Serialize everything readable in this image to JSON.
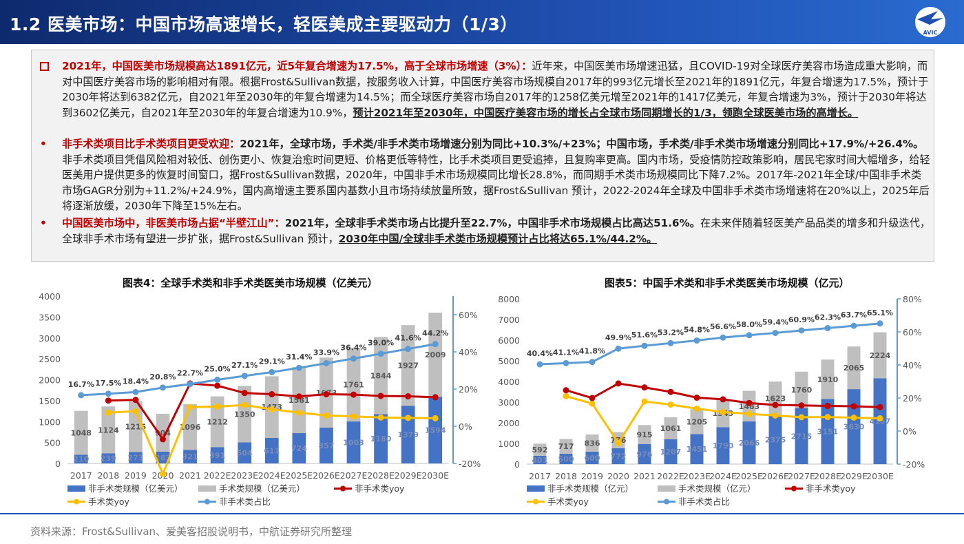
{
  "header": {
    "title": "1.2 医美市场：中国市场高速增长，轻医美成主要驱动力（1/3）",
    "logo_text": "AVIC"
  },
  "paragraphs": {
    "p1": {
      "lead": "2021年，中国医美市场规模高达1891亿元，近5年复合增速为17.5%，高于全球市场增速（3%）：",
      "body": "近年来，中国医美市场增速迅猛，且COVID-19对全球医疗美容市场造成重大影响，而对中国医疗美容市场的影响相对有限。根据Frost&Sullivan数据，按服务收入计算，中国医疗美容市场规模自2017年的993亿元增长至2021年的1891亿元，年复合增速为17.5%，预计于2030年将达到6382亿元，自2021年至2030年的年复合增速为14.5%；而全球医疗美容市场自2017年的1258亿美元增至2021年的1417亿美元，年复合增速为3%，预计于2030年将达到3602亿美元，自2021年至2030年的年复合增速为10.9%，",
      "tail": "预计2021年至2030年，中国医疗美容市场的增长占全球市场同期增长的1/3，领跑全球医美市场的高增长。"
    },
    "p2": {
      "bullet": "•",
      "lead": "非手术类项目比手术类项目更受欢迎：",
      "bold": "2021年，全球市场，手术类/非手术类市场增速分别为同比+10.3%/+23%；中国市场，手术类/非手术类市场增速分别同比+17.9%/+26.4%。",
      "body": "非手术类项目凭借风险相对较低、创伤更小、恢复治愈时间更短、价格更低等特性，比手术类项目更受追捧，且复购率更高。国内市场，受疫情防控政策影响，居民宅家时间大幅增多，给轻医美用户提供更多的恢复时间窗口，据Frost&Sullivan数据，2020年，中国非手术市场规模同比增长28.8%，而同期手术类市场规模同比下降7.2%。2017年-2021年全球/中国非手术类市场GAGR分别为+11.2%/+24.9%，国内高增速主要系国内基数小且市场持续放量所致，据Frost&Sullivan 预计，2022-2024年全球及中国非手术类市场增速将在20%以上，2025年后将逐渐放缓，2030年下降至15%左右。"
    },
    "p3": {
      "bullet": "•",
      "lead": "中国医美市场中，非医美市场占据“半壁江山”：",
      "bold": "2021年，全球非手术类市场占比提升至22.7%，中国非手术市场规模占比高达51.6%。",
      "body": "在未来伴随着轻医美产品品类的增多和升级迭代，全球非手术市场有望进一步扩张，据Frost&Sullivan 预计，",
      "tail": "2030年中国/全球非手术类市场规模预计占比将达65.1%/44.2%。"
    }
  },
  "chart_titles": {
    "left": "图表4：全球手术类和非手术类医美市场规模（亿美元）",
    "right": "图表5：中国手术类和非手术类医美市场规模（亿元）"
  },
  "footer": {
    "source": "资料来源：Frost&Sullivan、爱美客招股说明书，中航证券研究所整理"
  },
  "colors": {
    "nonsurg": "#4472c4",
    "surg": "#bfbfbf",
    "nonsurg_yoy": "#c00000",
    "surg_yoy": "#ffc000",
    "share": "#5b9bd5"
  },
  "chart_data": [
    {
      "type": "bar",
      "title": "图表4：全球手术类和非手术类医美市场规模（亿美元）",
      "categories": [
        "2017",
        "2018",
        "2019",
        "2020",
        "2021",
        "2022E",
        "2023E",
        "2024E",
        "2025E",
        "2026E",
        "2027E",
        "2028E",
        "2029E",
        "2030E"
      ],
      "ylim": [
        0,
        4000
      ],
      "yticks": [
        "0",
        "500",
        "1000",
        "1500",
        "2000",
        "2500",
        "3000",
        "3500",
        "4000"
      ],
      "y2lim": [
        -20,
        70
      ],
      "y2ticks": [
        "-20%",
        "0%",
        "20%",
        "40%",
        "60%"
      ],
      "series": [
        {
          "name": "非手术类规模（亿美元）",
          "kind": "bar-bottom",
          "values": [
            210,
            239,
            273,
            283,
            321,
            391,
            504,
            611,
            724,
            857,
            1003,
            1180,
            1379,
            1594
          ]
        },
        {
          "name": "手术类规模（亿美元）",
          "kind": "bar-top",
          "values": [
            1048,
            1124,
            1215,
            904,
            1096,
            1212,
            1350,
            1473,
            1581,
            1673,
            1761,
            1844,
            1927,
            2009
          ]
        },
        {
          "name": "非手术类yoy",
          "kind": "line-y2",
          "values": [
            null,
            13.8,
            14.2,
            -7.0,
            23.0,
            21.8,
            17.9,
            17.2,
            16.0,
            17.2,
            17.0,
            16.3,
            16.1,
            15.6
          ]
        },
        {
          "name": "手术类yoy",
          "kind": "line-y2",
          "values": [
            null,
            7.3,
            8.1,
            -25.6,
            10.3,
            10.6,
            11.4,
            9.1,
            7.3,
            5.8,
            5.3,
            4.7,
            4.5,
            4.3
          ]
        },
        {
          "name": "非手术类占比",
          "kind": "line-y2",
          "values": [
            16.7,
            17.5,
            18.4,
            20.8,
            22.7,
            25.0,
            27.1,
            29.1,
            31.4,
            33.9,
            36.4,
            39.0,
            41.6,
            44.2
          ],
          "labels": [
            "16.7%",
            "17.5%",
            "18.4%",
            "20.8%",
            "22.7%",
            "25.0%",
            "27.1%",
            "29.1%",
            "31.4%",
            "33.9%",
            "36.4%",
            "39.0%",
            "41.6%",
            "44.2%"
          ]
        }
      ]
    },
    {
      "type": "bar",
      "title": "图表5：中国手术类和非手术类医美市场规模（亿元）",
      "categories": [
        "2017",
        "2018",
        "2019",
        "2020",
        "2021",
        "2022E",
        "2023E",
        "2024E",
        "2025E",
        "2026E",
        "2027E",
        "2028E",
        "2029E",
        "2030E"
      ],
      "ylim": [
        0,
        8000
      ],
      "yticks": [
        "0",
        "1000",
        "2000",
        "3000",
        "4000",
        "5000",
        "6000",
        "7000",
        "8000"
      ],
      "y2lim": [
        -20,
        80
      ],
      "y2ticks": [
        "-20%",
        "0%",
        "20%",
        "40%",
        "60%",
        "80%"
      ],
      "series": [
        {
          "name": "非手术类规模（亿元）",
          "kind": "bar-bottom",
          "values": [
            401,
            500,
            600,
            772,
            976,
            1207,
            1451,
            1790,
            2066,
            2375,
            2715,
            3151,
            3630,
            4157
          ]
        },
        {
          "name": "手术类规模（亿元）",
          "kind": "bar-top",
          "values": [
            592,
            717,
            836,
            776,
            915,
            1061,
            1205,
            1343,
            1483,
            1623,
            1760,
            1910,
            2065,
            2224
          ]
        },
        {
          "name": "非手术类yoy",
          "kind": "line-y2",
          "values": [
            null,
            24.7,
            20.0,
            28.8,
            26.4,
            23.7,
            20.2,
            19.2,
            17.0,
            15.8,
            15.5,
            15.2,
            15.0,
            14.5
          ]
        },
        {
          "name": "手术类yoy",
          "kind": "line-y2",
          "values": [
            null,
            21.1,
            16.6,
            -7.2,
            17.9,
            16.0,
            13.6,
            11.5,
            10.4,
            9.4,
            8.4,
            8.5,
            8.1,
            7.7
          ]
        },
        {
          "name": "非手术类占比",
          "kind": "line-y2",
          "values": [
            40.4,
            41.1,
            41.8,
            49.9,
            51.6,
            53.2,
            54.8,
            56.6,
            58.0,
            59.4,
            60.9,
            62.3,
            63.7,
            65.1
          ],
          "labels": [
            "40.4%",
            "41.1%",
            "41.8%",
            "49.9%",
            "51.6%",
            "53.2%",
            "54.8%",
            "56.6%",
            "58.0%",
            "59.4%",
            "60.9%",
            "62.3%",
            "63.7%",
            "65.1%"
          ]
        }
      ]
    }
  ]
}
